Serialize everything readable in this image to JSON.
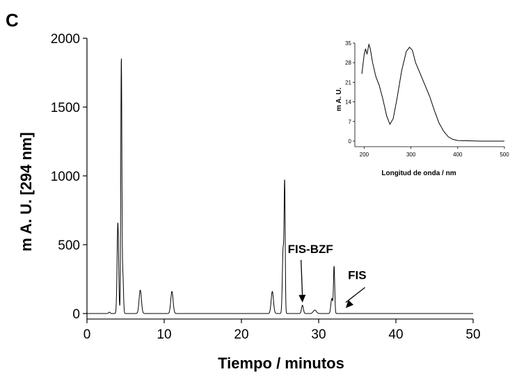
{
  "panel_label": "C",
  "chart_data": [
    {
      "type": "line",
      "xlabel": "Tiempo / minutos",
      "ylabel": "m A. U. [294 nm]",
      "xlim": [
        0,
        50
      ],
      "ylim": [
        -40,
        2000
      ],
      "xticks": [
        0,
        10,
        20,
        30,
        40,
        50
      ],
      "yticks": [
        0,
        500,
        1000,
        1500,
        2000
      ],
      "grid": false,
      "peaks": [
        {
          "t": 4.0,
          "h": 660,
          "w": 0.1
        },
        {
          "t": 4.45,
          "h": 1850,
          "w": 0.07
        },
        {
          "t": 4.65,
          "h": 270,
          "w": 0.08
        },
        {
          "t": 6.9,
          "h": 170,
          "w": 0.15
        },
        {
          "t": 11.0,
          "h": 160,
          "w": 0.15
        },
        {
          "t": 24.0,
          "h": 160,
          "w": 0.15
        },
        {
          "t": 25.4,
          "h": 470,
          "w": 0.1
        },
        {
          "t": 25.6,
          "h": 910,
          "w": 0.07
        },
        {
          "t": 27.9,
          "h": 60,
          "w": 0.12
        },
        {
          "t": 31.7,
          "h": 110,
          "w": 0.12
        },
        {
          "t": 32.0,
          "h": 340,
          "w": 0.08
        },
        {
          "t": 2.9,
          "h": 10,
          "w": 0.1
        },
        {
          "t": 29.5,
          "h": 25,
          "w": 0.2
        }
      ],
      "annotations": [
        {
          "text": "FIS-BZF",
          "target_x": 27.9,
          "target_y": 80,
          "text_x": 26.0,
          "text_y": 440
        },
        {
          "text": "FIS",
          "target_x": 33.5,
          "target_y": 40,
          "text_x": 33.8,
          "text_y": 250
        }
      ]
    },
    {
      "type": "line",
      "xlabel": "Longitud de onda / nm",
      "ylabel": "m A. U.",
      "xlim": [
        180,
        500
      ],
      "ylim": [
        -2,
        35
      ],
      "xticks": [
        200,
        300,
        400,
        500
      ],
      "yticks": [
        0,
        7,
        14,
        21,
        28,
        35
      ],
      "grid": false,
      "x": [
        195,
        200,
        203,
        206,
        210,
        213,
        218,
        225,
        232,
        240,
        248,
        255,
        262,
        270,
        280,
        290,
        297,
        303,
        310,
        320,
        330,
        340,
        350,
        360,
        370,
        380,
        390,
        400,
        420,
        450,
        500
      ],
      "y": [
        24,
        31,
        33,
        31,
        34.5,
        33,
        28,
        23,
        20,
        15,
        9,
        6,
        8,
        15,
        25,
        32,
        33.5,
        32.5,
        28,
        24,
        20,
        16,
        11,
        6.5,
        3.5,
        1.5,
        0.6,
        0.2,
        0.1,
        0,
        0
      ]
    }
  ]
}
